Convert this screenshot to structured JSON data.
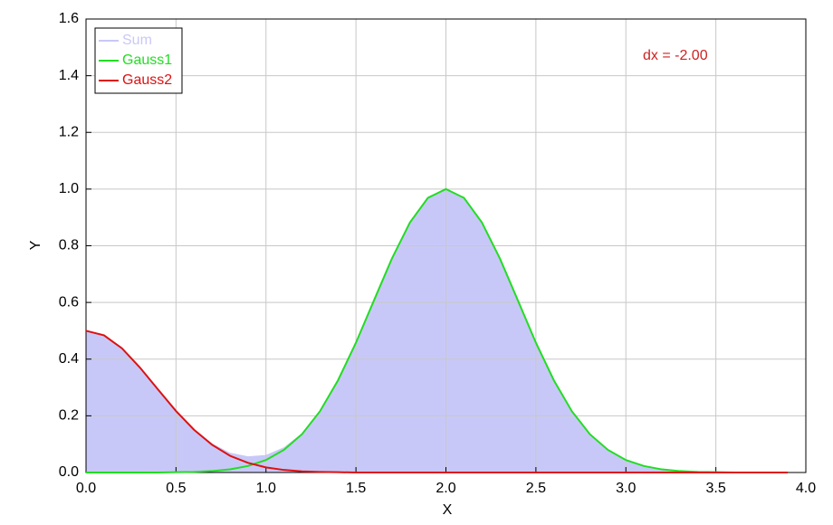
{
  "chart_data": {
    "type": "line",
    "x_label": "X",
    "y_label": "Y",
    "annotation": "dx = -2.00",
    "annotation_color": "#cc2222",
    "x": [
      0,
      0.1,
      0.2,
      0.3,
      0.4,
      0.5,
      0.6,
      0.7,
      0.8,
      0.9,
      1.0,
      1.1,
      1.2,
      1.3,
      1.4,
      1.5,
      1.6,
      1.7,
      1.8,
      1.9,
      2.0,
      2.1,
      2.2,
      2.3,
      2.4,
      2.5,
      2.6,
      2.7,
      2.8,
      2.9,
      3.0,
      3.1,
      3.2,
      3.3,
      3.4,
      3.5,
      3.6,
      3.7,
      3.8,
      3.9
    ],
    "series": [
      {
        "name": "Sum",
        "color": "#c8c8f8",
        "area": true,
        "values": [
          0.5,
          0.484,
          0.438,
          0.37,
          0.293,
          0.218,
          0.153,
          0.103,
          0.07,
          0.057,
          0.062,
          0.089,
          0.139,
          0.218,
          0.326,
          0.458,
          0.607,
          0.755,
          0.882,
          0.969,
          1,
          0.969,
          0.882,
          0.755,
          0.607,
          0.458,
          0.325,
          0.216,
          0.135,
          0.08,
          0.044,
          0.023,
          0.011,
          0.005,
          0.002,
          0.001,
          0,
          0,
          0,
          0
        ]
      },
      {
        "name": "Gauss1",
        "color": "#22dd22",
        "values": [
          0,
          0,
          0,
          0,
          0,
          0.001,
          0.002,
          0.005,
          0.011,
          0.023,
          0.044,
          0.08,
          0.135,
          0.216,
          0.325,
          0.458,
          0.607,
          0.755,
          0.882,
          0.969,
          1,
          0.969,
          0.882,
          0.755,
          0.607,
          0.458,
          0.325,
          0.216,
          0.135,
          0.08,
          0.044,
          0.023,
          0.011,
          0.005,
          0.002,
          0.001,
          0,
          0,
          0,
          0
        ]
      },
      {
        "name": "Gauss2",
        "color": "#dd1111",
        "values": [
          0.5,
          0.484,
          0.438,
          0.37,
          0.293,
          0.217,
          0.151,
          0.098,
          0.059,
          0.034,
          0.018,
          0.009,
          0.004,
          0.002,
          0.001,
          0,
          0,
          0,
          0,
          0,
          0,
          0,
          0,
          0,
          0,
          0,
          0,
          0,
          0,
          0,
          0,
          0,
          0,
          0,
          0,
          0,
          0,
          0,
          0,
          0
        ]
      }
    ],
    "xlim": [
      0,
      4
    ],
    "xticks": [
      {
        "value": 0,
        "label": "0.0"
      },
      0.5,
      {
        "value": 1,
        "label": "1.0"
      },
      1.5,
      {
        "value": 2,
        "label": "2.0"
      },
      2.5,
      {
        "value": 3,
        "label": "3.0"
      },
      3.5,
      {
        "value": 4,
        "label": "4.0"
      }
    ],
    "ylim": [
      0,
      1.6
    ],
    "yticks": [
      {
        "value": 0,
        "label": "0.0"
      },
      0.2,
      0.4,
      0.6,
      0.8,
      {
        "value": 1,
        "label": "1.0"
      },
      1.2,
      1.4,
      1.6
    ],
    "grid": true,
    "legend": "top-left"
  }
}
